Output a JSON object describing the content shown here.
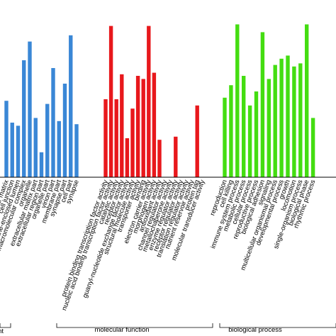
{
  "chart_data": {
    "type": "bar",
    "title": "",
    "xlabel": "",
    "ylabel": "",
    "ylim": [
      0,
      100
    ],
    "grid": false,
    "legend": "none",
    "colors": {
      "cellular component": "#3a87d6",
      "molecular function": "#e8181c",
      "biological process": "#44dd11"
    },
    "groups": [
      {
        "name": "component",
        "label": "ponent",
        "color": "#3a87d6",
        "categories": [
          "cellular matrix",
          "cell junction",
          "membrane-enclosed lumen",
          "macromolecular complex",
          "organelle",
          "extracellular matrix part",
          "extracellular region part",
          "organelle part",
          "virion part",
          "membrane part",
          "synapse part",
          "cell part",
          "synapse"
        ],
        "values": [
          49,
          35,
          33,
          75,
          87,
          38,
          16,
          47,
          70,
          36,
          60,
          91,
          34
        ]
      },
      {
        "name": "molecular function",
        "label": "molecular function",
        "color": "#e8181c",
        "categories": [
          "protein binding transcription factor activity",
          "nucleic acid binding transcription factor activity",
          "catalytic activity",
          "receptor activity",
          "guanyl-nucleotide exchange factor activity",
          "structural molecule activity",
          "transporter activity",
          "binding",
          "electron carrier activity",
          "morphogen activity",
          "antioxidant activity",
          "channel regulator activity",
          "metallochaperone activity",
          "enzyme regulator activity",
          "receptor regulator activity",
          "translation regulator activity",
          "nutrient reservoir activity",
          "protein tag",
          "molecular transducer activity"
        ],
        "values": [
          50,
          97,
          50,
          66,
          25,
          44,
          65,
          63,
          97,
          67,
          24,
          0,
          0,
          26,
          0,
          0,
          0,
          46,
          0
        ]
      },
      {
        "name": "biological process",
        "label": "biological process",
        "color": "#44dd11",
        "categories": [
          "reproduction",
          "cell killing",
          "immune system process",
          "metabolic process",
          "cellular process",
          "reproductive process",
          "biological adhesion",
          "signaling",
          "multicellular organismal process",
          "developmental process",
          "growth",
          "locomotion",
          "single-organism process",
          "biological phase",
          "rhythmic process"
        ],
        "values": [
          51,
          59,
          98,
          65,
          46,
          55,
          93,
          63,
          72,
          76,
          78,
          71,
          73,
          98,
          38
        ]
      }
    ]
  }
}
